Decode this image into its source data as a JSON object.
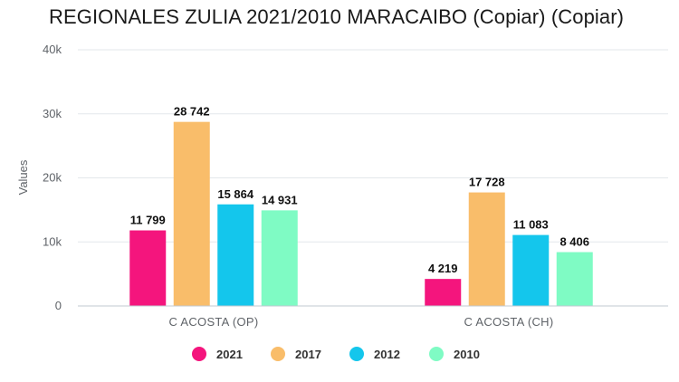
{
  "chart_data": {
    "type": "bar",
    "title": "REGIONALES ZULIA 2021/2010 MARACAIBO (Copiar) (Copiar)",
    "xlabel": "",
    "ylabel": "Values",
    "ylim": [
      0,
      40000
    ],
    "yticks": [
      0,
      10000,
      20000,
      30000,
      40000
    ],
    "ytick_labels": [
      "0",
      "10k",
      "20k",
      "30k",
      "40k"
    ],
    "categories": [
      "C ACOSTA (OP)",
      "C ACOSTA (CH)"
    ],
    "series": [
      {
        "name": "2021",
        "color": "#f4157d",
        "values": [
          11799,
          4219
        ],
        "labels": [
          "11 799",
          "4 219"
        ]
      },
      {
        "name": "2017",
        "color": "#f9bd6a",
        "values": [
          28742,
          17728
        ],
        "labels": [
          "28 742",
          "17 728"
        ]
      },
      {
        "name": "2012",
        "color": "#14c6ec",
        "values": [
          15864,
          11083
        ],
        "labels": [
          "15 864",
          "11 083"
        ]
      },
      {
        "name": "2010",
        "color": "#7ffbc4",
        "values": [
          14931,
          8406
        ],
        "labels": [
          "14 931",
          "8 406"
        ]
      }
    ],
    "grid": true,
    "legend": "bottom-center"
  }
}
